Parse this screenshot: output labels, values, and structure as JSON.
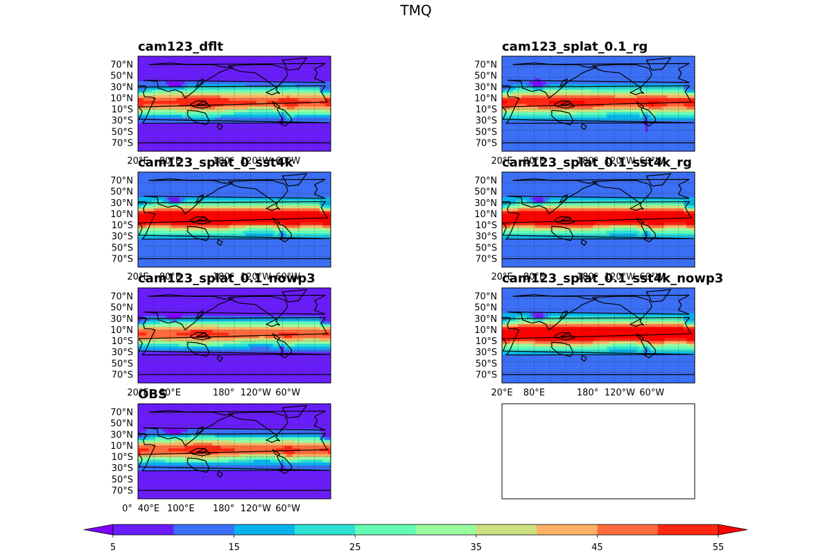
{
  "chart_data": {
    "type": "heatmap",
    "title": "TMQ",
    "panels": [
      {
        "title": "cam123_dflt",
        "variant": "dflt",
        "x_tick_labels": [
          "20°E",
          "80°E",
          "180°",
          "120°W",
          "60°W"
        ]
      },
      {
        "title": "cam123_splat_0.1_rg",
        "variant": "rg",
        "x_tick_labels": [
          "20°E",
          "80°E",
          "180°",
          "120°W",
          "60°W"
        ]
      },
      {
        "title": "cam123_splat_0_sst4k",
        "variant": "sst4k",
        "x_tick_labels": [
          "20°E",
          "80°E",
          "180°",
          "120°W",
          "60°W"
        ]
      },
      {
        "title": "cam123_splat_0.1_sst4k_rg",
        "variant": "sst4k_rg",
        "x_tick_labels": [
          "20°E",
          "80°E",
          "180°",
          "120°W",
          "60°W"
        ]
      },
      {
        "title": "cam123_splat_0.1_nowp3",
        "variant": "nowp3",
        "x_tick_labels": [
          "20°E",
          "80°E",
          "180°",
          "120°W",
          "60°W"
        ]
      },
      {
        "title": "cam123_splat_0.1_sst4k_nowp3",
        "variant": "sst4k_nowp3",
        "x_tick_labels": [
          "20°E",
          "80°E",
          "180°",
          "120°W",
          "60°W"
        ]
      },
      {
        "title": "OBS",
        "variant": "obs",
        "x_tick_labels": [
          "0°",
          "40°E",
          "100°E",
          "180°",
          "120°W",
          "60°W"
        ]
      }
    ],
    "empty_panel": true,
    "y_tick_labels": [
      "70°N",
      "50°N",
      "30°N",
      "10°N",
      "10°S",
      "30°S",
      "50°S",
      "70°S"
    ],
    "colorbar": {
      "levels": [
        5,
        10,
        15,
        20,
        25,
        30,
        35,
        40,
        45,
        50,
        55
      ],
      "tick_labels": [
        "5",
        "15",
        "25",
        "35",
        "45",
        "55"
      ],
      "colors": [
        "#6a1dfb",
        "#3b6ff6",
        "#07b2e9",
        "#2ee0d2",
        "#64fdb6",
        "#99fc9e",
        "#cbe07e",
        "#fdb164",
        "#ff6b3c",
        "#ff2612"
      ],
      "extend": "both",
      "under_color": "#8000ff",
      "over_color": "#ff0000"
    }
  }
}
